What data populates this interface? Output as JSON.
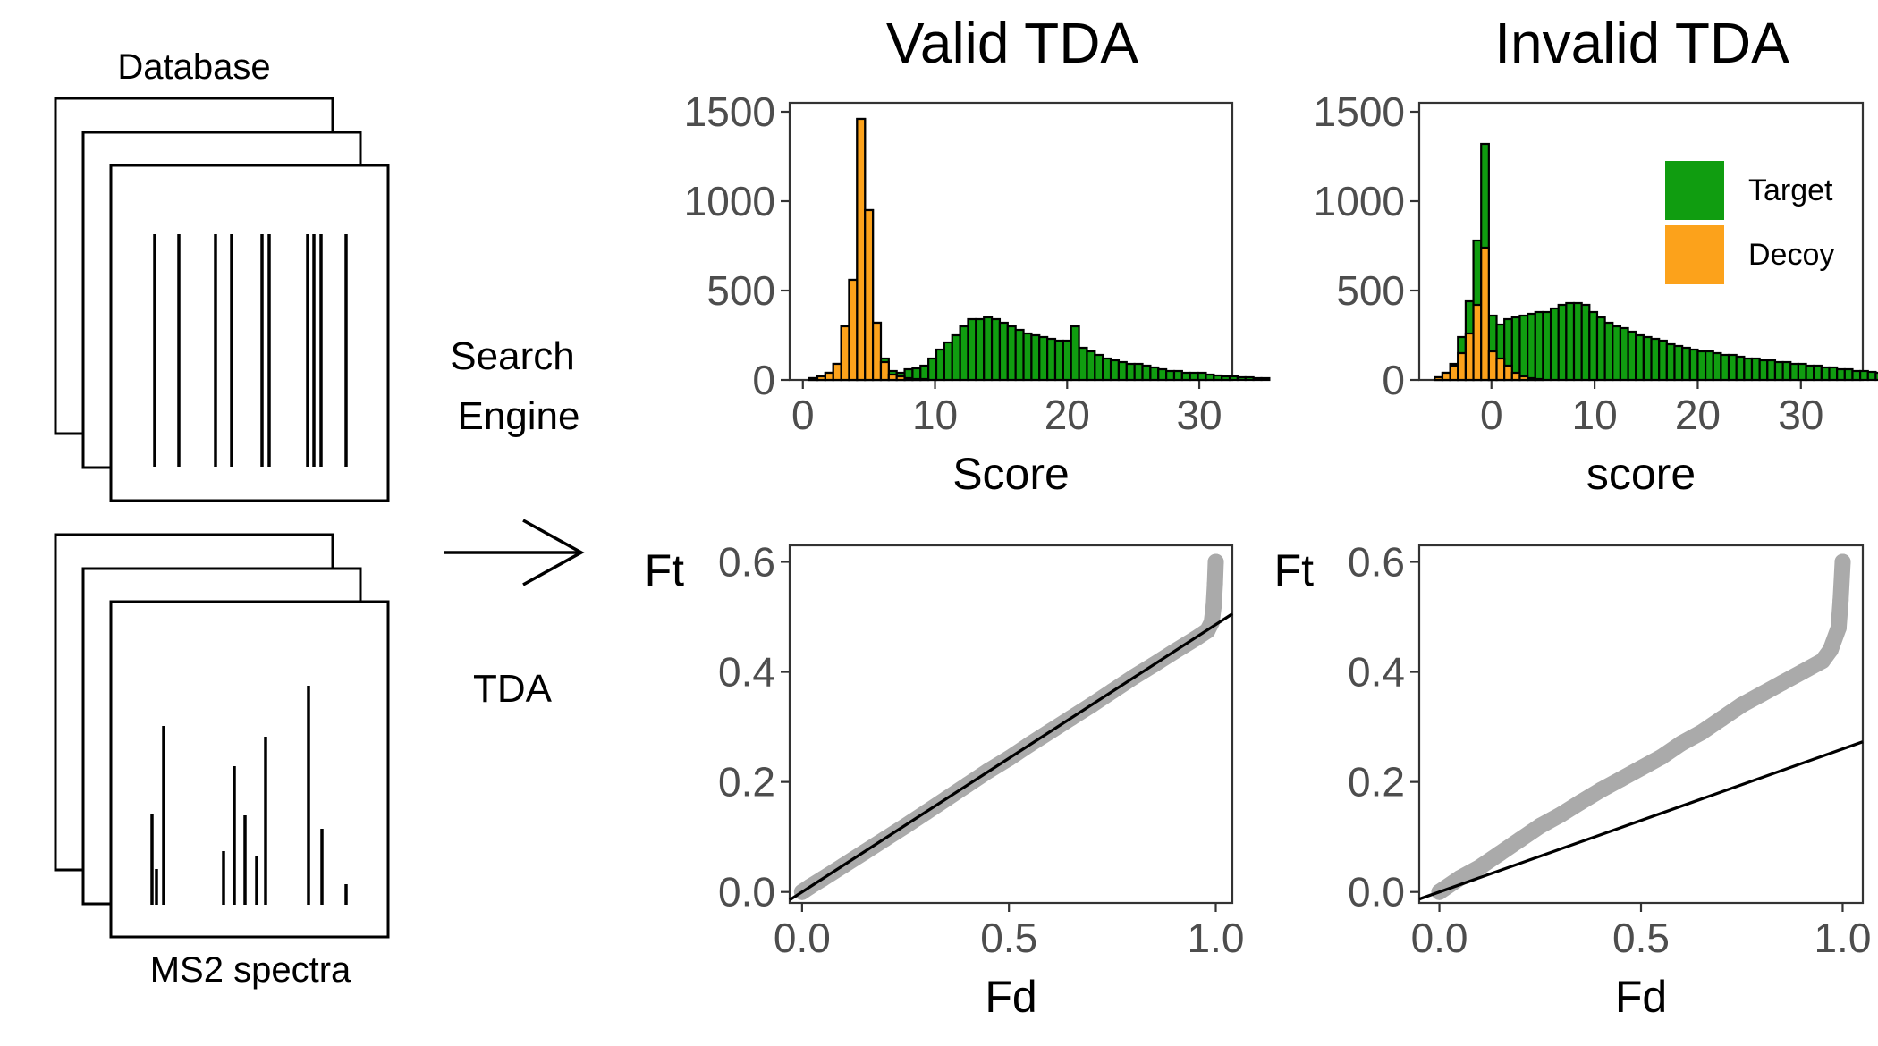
{
  "diagram": {
    "database_label": "Database",
    "spectra_label": "MS2 spectra",
    "search_label_line1": "Search",
    "search_label_line2": "Engine",
    "tda_label": "TDA"
  },
  "colors": {
    "target": "#109d10",
    "decoy": "#fca21b",
    "qq_points": "#aaaaaa",
    "axis_text": "#4d4d4d",
    "ink": "#000000"
  },
  "panel_titles": [
    "Valid TDA",
    "Invalid TDA"
  ],
  "legend": {
    "position": "top-right",
    "items": [
      {
        "label": "Target",
        "color": "#109d10"
      },
      {
        "label": "Decoy",
        "color": "#fca21b"
      }
    ]
  },
  "chart_data": [
    {
      "type": "bar",
      "subtype": "histogram-overlay",
      "title": "Valid TDA",
      "xlabel": "Score",
      "ylabel": "",
      "xlim": [
        -1,
        32.5
      ],
      "ylim": [
        0,
        1550
      ],
      "xticks": [
        0,
        10,
        20,
        30
      ],
      "yticks": [
        0,
        500,
        1000,
        1500
      ],
      "bin_width": 0.6,
      "series": [
        {
          "name": "Target",
          "x_start": 0.5,
          "values": [
            10,
            20,
            40,
            90,
            300,
            560,
            1460,
            950,
            320,
            120,
            50,
            40,
            60,
            65,
            80,
            120,
            170,
            210,
            250,
            300,
            340,
            340,
            350,
            340,
            320,
            300,
            280,
            260,
            250,
            240,
            230,
            220,
            220,
            300,
            180,
            160,
            140,
            120,
            110,
            100,
            90,
            90,
            80,
            70,
            60,
            50,
            50,
            40,
            40,
            40,
            30,
            25,
            20,
            20,
            15,
            15,
            10,
            10
          ]
        },
        {
          "name": "Decoy",
          "x_start": 0.5,
          "values": [
            10,
            20,
            40,
            90,
            300,
            560,
            1460,
            950,
            320,
            100,
            30,
            20,
            10,
            5,
            5
          ]
        }
      ]
    },
    {
      "type": "bar",
      "subtype": "histogram-overlay",
      "title": "Invalid TDA",
      "xlabel": "score",
      "ylabel": "",
      "xlim": [
        -7,
        36
      ],
      "ylim": [
        0,
        1550
      ],
      "xticks": [
        0,
        10,
        20,
        30
      ],
      "yticks": [
        0,
        500,
        1000,
        1500
      ],
      "bin_width": 0.75,
      "series": [
        {
          "name": "Target",
          "x_start": -5.5,
          "values": [
            15,
            40,
            90,
            240,
            440,
            780,
            1320,
            360,
            310,
            340,
            350,
            360,
            370,
            380,
            380,
            400,
            420,
            430,
            430,
            420,
            380,
            350,
            320,
            300,
            290,
            270,
            250,
            240,
            230,
            220,
            200,
            190,
            180,
            170,
            160,
            160,
            150,
            140,
            140,
            130,
            120,
            120,
            110,
            110,
            100,
            100,
            90,
            90,
            80,
            80,
            70,
            70,
            60,
            60,
            50,
            50,
            45,
            40,
            40,
            45,
            90
          ]
        },
        {
          "name": "Decoy",
          "x_start": -5.5,
          "values": [
            15,
            40,
            80,
            150,
            260,
            420,
            740,
            160,
            120,
            80,
            40,
            20,
            10,
            5
          ]
        }
      ]
    },
    {
      "type": "scatter",
      "subtype": "pp-plot",
      "title": "",
      "xlabel": "Fd",
      "ylabel": "Ft",
      "xlim": [
        -0.03,
        1.04
      ],
      "ylim": [
        -0.02,
        0.63
      ],
      "xticks": [
        0.0,
        0.5,
        1.0
      ],
      "yticks": [
        0.0,
        0.2,
        0.4,
        0.6
      ],
      "series": [
        {
          "name": "",
          "x": [
            0.0,
            0.02,
            0.05,
            0.1,
            0.15,
            0.2,
            0.25,
            0.3,
            0.35,
            0.4,
            0.45,
            0.5,
            0.55,
            0.6,
            0.65,
            0.7,
            0.75,
            0.8,
            0.85,
            0.9,
            0.95,
            0.98,
            0.99,
            0.995,
            0.998,
            1.0
          ],
          "y": [
            0.0,
            0.01,
            0.024,
            0.048,
            0.072,
            0.096,
            0.12,
            0.145,
            0.17,
            0.195,
            0.22,
            0.243,
            0.268,
            0.292,
            0.316,
            0.34,
            0.365,
            0.39,
            0.413,
            0.437,
            0.46,
            0.475,
            0.49,
            0.52,
            0.56,
            0.6
          ]
        }
      ],
      "reference_line": {
        "slope": 0.486,
        "intercept": 0.0
      }
    },
    {
      "type": "scatter",
      "subtype": "pp-plot",
      "title": "",
      "xlabel": "Fd",
      "ylabel": "Ft",
      "xlim": [
        -0.05,
        1.05
      ],
      "ylim": [
        -0.02,
        0.63
      ],
      "xticks": [
        0.0,
        0.5,
        1.0
      ],
      "yticks": [
        0.0,
        0.2,
        0.4,
        0.6
      ],
      "series": [
        {
          "name": "",
          "x": [
            0.0,
            0.05,
            0.1,
            0.15,
            0.2,
            0.25,
            0.3,
            0.35,
            0.4,
            0.45,
            0.5,
            0.55,
            0.6,
            0.65,
            0.7,
            0.75,
            0.8,
            0.85,
            0.9,
            0.95,
            0.97,
            0.99,
            0.995,
            1.0
          ],
          "y": [
            0.0,
            0.025,
            0.045,
            0.07,
            0.095,
            0.12,
            0.14,
            0.163,
            0.185,
            0.205,
            0.225,
            0.245,
            0.27,
            0.29,
            0.315,
            0.34,
            0.36,
            0.38,
            0.4,
            0.42,
            0.44,
            0.48,
            0.53,
            0.6
          ]
        }
      ],
      "reference_line": {
        "slope": 0.26,
        "intercept": 0.0
      }
    }
  ]
}
